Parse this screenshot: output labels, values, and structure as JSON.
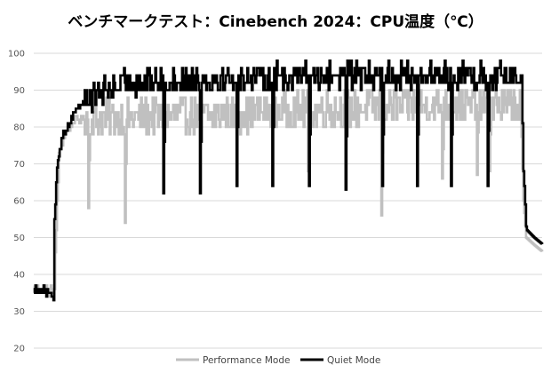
{
  "chart_data": {
    "type": "line",
    "title": "ベンチマークテスト：Cinebench 2024：CPU温度（℃）",
    "xlabel": "",
    "ylabel": "",
    "ylim": [
      20,
      100
    ],
    "yticks": [
      20,
      30,
      40,
      50,
      60,
      70,
      80,
      90,
      100
    ],
    "grid": true,
    "legend_position": "bottom",
    "x_points": 570,
    "series": [
      {
        "name": "Performance Mode",
        "color": "#c0c0c0",
        "segments": [
          [
            0,
            37
          ],
          [
            3,
            36
          ],
          [
            6,
            37
          ],
          [
            10,
            36
          ],
          [
            14,
            36
          ],
          [
            17,
            35
          ],
          [
            20,
            36
          ],
          [
            23,
            36
          ],
          [
            24,
            45
          ],
          [
            26,
            60
          ],
          [
            28,
            72
          ],
          [
            31,
            75
          ],
          [
            35,
            78
          ],
          [
            40,
            80
          ],
          [
            45,
            82
          ],
          [
            55,
            82
          ],
          [
            150,
            83
          ],
          [
            250,
            84
          ],
          [
            350,
            85
          ],
          [
            450,
            86
          ],
          [
            545,
            86
          ],
          [
            548,
            60
          ],
          [
            551,
            50
          ],
          [
            560,
            48
          ],
          [
            570,
            46
          ]
        ],
        "noise_amp": 5,
        "dips": [
          [
            61,
            58
          ],
          [
            102,
            54
          ],
          [
            307,
            68
          ],
          [
            389,
            56
          ],
          [
            457,
            66
          ],
          [
            496,
            67
          ],
          [
            510,
            68
          ]
        ]
      },
      {
        "name": "Quiet Mode",
        "color": "#000000",
        "segments": [
          [
            0,
            36
          ],
          [
            6,
            36
          ],
          [
            12,
            36
          ],
          [
            14,
            35
          ],
          [
            16,
            35
          ],
          [
            17,
            34
          ],
          [
            20,
            34
          ],
          [
            22,
            34
          ],
          [
            23,
            55
          ],
          [
            26,
            70
          ],
          [
            29,
            74
          ],
          [
            33,
            78
          ],
          [
            38,
            80
          ],
          [
            45,
            84
          ],
          [
            55,
            87
          ],
          [
            65,
            88
          ],
          [
            80,
            90
          ],
          [
            100,
            92
          ],
          [
            200,
            93
          ],
          [
            300,
            94
          ],
          [
            400,
            94
          ],
          [
            500,
            94
          ],
          [
            546,
            94
          ],
          [
            549,
            55
          ],
          [
            552,
            52
          ],
          [
            560,
            50
          ],
          [
            570,
            48
          ]
        ],
        "noise_amp": 3.5,
        "dips": [
          [
            145,
            62
          ],
          [
            186,
            62
          ],
          [
            227,
            64
          ],
          [
            267,
            64
          ],
          [
            308,
            64
          ],
          [
            349,
            63
          ],
          [
            390,
            64
          ],
          [
            429,
            64
          ],
          [
            467,
            64
          ],
          [
            508,
            64
          ],
          [
            549,
            64
          ]
        ]
      }
    ]
  }
}
